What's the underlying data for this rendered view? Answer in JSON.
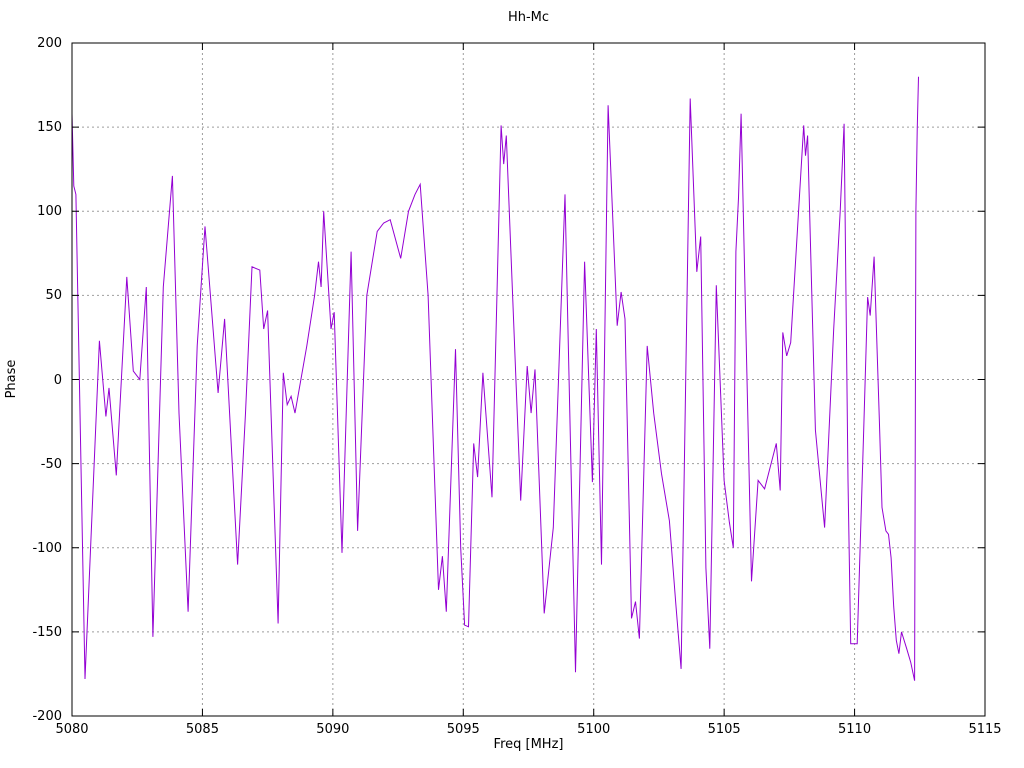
{
  "window": {
    "background": "#ffffff"
  },
  "chart_data": {
    "type": "line",
    "title": "Hh-Mc",
    "xlabel": "Freq [MHz]",
    "ylabel": "Phase",
    "xlim": [
      5080,
      5115
    ],
    "ylim": [
      -200,
      200
    ],
    "xticks": [
      5080,
      5085,
      5090,
      5095,
      5100,
      5105,
      5110,
      5115
    ],
    "yticks": [
      -200,
      -150,
      -100,
      -50,
      0,
      50,
      100,
      150,
      200
    ],
    "grid": "dashed gray at every major tick, both axes",
    "legend": "none",
    "line_color": "#9400d3",
    "grid_color": "#9e9e9e",
    "frame_color": "#000000",
    "series": [
      {
        "name": "Hh-Mc",
        "points": [
          [
            5080.0,
            158
          ],
          [
            5080.07,
            115
          ],
          [
            5080.15,
            110
          ],
          [
            5080.5,
            -178
          ],
          [
            5081.05,
            23
          ],
          [
            5081.3,
            -22
          ],
          [
            5081.42,
            -5
          ],
          [
            5081.7,
            -57
          ],
          [
            5082.1,
            61
          ],
          [
            5082.35,
            5
          ],
          [
            5082.6,
            0
          ],
          [
            5082.85,
            55
          ],
          [
            5083.1,
            -153
          ],
          [
            5083.5,
            55
          ],
          [
            5083.85,
            121
          ],
          [
            5084.1,
            -20
          ],
          [
            5084.45,
            -138
          ],
          [
            5084.8,
            20
          ],
          [
            5085.1,
            91
          ],
          [
            5085.6,
            -8
          ],
          [
            5085.85,
            36
          ],
          [
            5086.35,
            -110
          ],
          [
            5086.65,
            -20
          ],
          [
            5086.9,
            67
          ],
          [
            5087.2,
            65
          ],
          [
            5087.35,
            30
          ],
          [
            5087.5,
            41
          ],
          [
            5087.9,
            -145
          ],
          [
            5088.1,
            4
          ],
          [
            5088.25,
            -15
          ],
          [
            5088.4,
            -10
          ],
          [
            5088.55,
            -20
          ],
          [
            5089.0,
            20
          ],
          [
            5089.3,
            50
          ],
          [
            5089.45,
            70
          ],
          [
            5089.55,
            55
          ],
          [
            5089.65,
            100
          ],
          [
            5089.93,
            30
          ],
          [
            5090.05,
            40
          ],
          [
            5090.35,
            -103
          ],
          [
            5090.7,
            76
          ],
          [
            5090.95,
            -90
          ],
          [
            5091.3,
            50
          ],
          [
            5091.7,
            88
          ],
          [
            5091.95,
            93
          ],
          [
            5092.2,
            95
          ],
          [
            5092.6,
            72
          ],
          [
            5092.9,
            100
          ],
          [
            5093.15,
            110
          ],
          [
            5093.35,
            116
          ],
          [
            5093.65,
            50
          ],
          [
            5094.05,
            -125
          ],
          [
            5094.2,
            -105
          ],
          [
            5094.35,
            -138
          ],
          [
            5094.7,
            18
          ],
          [
            5094.9,
            -100
          ],
          [
            5095.05,
            -146
          ],
          [
            5095.2,
            -147
          ],
          [
            5095.4,
            -38
          ],
          [
            5095.55,
            -58
          ],
          [
            5095.75,
            4
          ],
          [
            5096.1,
            -70
          ],
          [
            5096.45,
            151
          ],
          [
            5096.55,
            128
          ],
          [
            5096.65,
            145
          ],
          [
            5097.2,
            -72
          ],
          [
            5097.45,
            8
          ],
          [
            5097.6,
            -20
          ],
          [
            5097.75,
            6
          ],
          [
            5098.1,
            -139
          ],
          [
            5098.45,
            -88
          ],
          [
            5098.9,
            110
          ],
          [
            5099.3,
            -174
          ],
          [
            5099.65,
            70
          ],
          [
            5099.95,
            -61
          ],
          [
            5100.1,
            30
          ],
          [
            5100.3,
            -110
          ],
          [
            5100.55,
            163
          ],
          [
            5100.9,
            32
          ],
          [
            5101.05,
            52
          ],
          [
            5101.2,
            36
          ],
          [
            5101.45,
            -142
          ],
          [
            5101.6,
            -132
          ],
          [
            5101.75,
            -154
          ],
          [
            5102.05,
            20
          ],
          [
            5102.3,
            -20
          ],
          [
            5102.6,
            -56
          ],
          [
            5102.9,
            -84
          ],
          [
            5103.15,
            -134
          ],
          [
            5103.35,
            -172
          ],
          [
            5103.7,
            167
          ],
          [
            5103.95,
            64
          ],
          [
            5104.1,
            85
          ],
          [
            5104.3,
            -112
          ],
          [
            5104.45,
            -160
          ],
          [
            5104.7,
            56
          ],
          [
            5105.0,
            -60
          ],
          [
            5105.2,
            -85
          ],
          [
            5105.35,
            -100
          ],
          [
            5105.45,
            76
          ],
          [
            5105.55,
            108
          ],
          [
            5105.65,
            158
          ],
          [
            5106.05,
            -120
          ],
          [
            5106.3,
            -60
          ],
          [
            5106.55,
            -65
          ],
          [
            5107.0,
            -38
          ],
          [
            5107.15,
            -66
          ],
          [
            5107.25,
            28
          ],
          [
            5107.4,
            14
          ],
          [
            5107.55,
            22
          ],
          [
            5108.05,
            151
          ],
          [
            5108.12,
            133
          ],
          [
            5108.2,
            145
          ],
          [
            5108.5,
            -30
          ],
          [
            5108.85,
            -88
          ],
          [
            5109.2,
            30
          ],
          [
            5109.45,
            100
          ],
          [
            5109.6,
            152
          ],
          [
            5109.75,
            -60
          ],
          [
            5109.85,
            -157
          ],
          [
            5110.1,
            -157
          ],
          [
            5110.35,
            -30
          ],
          [
            5110.5,
            49
          ],
          [
            5110.6,
            38
          ],
          [
            5110.75,
            73
          ],
          [
            5110.95,
            -25
          ],
          [
            5111.05,
            -76
          ],
          [
            5111.2,
            -90
          ],
          [
            5111.3,
            -92
          ],
          [
            5111.4,
            -106
          ],
          [
            5111.5,
            -135
          ],
          [
            5111.6,
            -155
          ],
          [
            5111.7,
            -163
          ],
          [
            5111.8,
            -150
          ],
          [
            5112.0,
            -160
          ],
          [
            5112.15,
            -168
          ],
          [
            5112.3,
            -179
          ],
          [
            5112.35,
            100
          ],
          [
            5112.4,
            148
          ],
          [
            5112.45,
            180
          ]
        ]
      }
    ]
  }
}
